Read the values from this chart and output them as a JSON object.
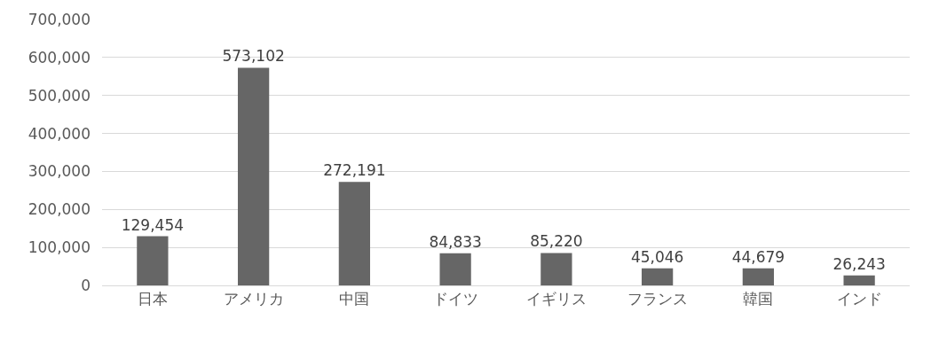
{
  "chart_data": {
    "type": "bar",
    "categories": [
      "日本",
      "アメリカ",
      "中国",
      "ドイツ",
      "イギリス",
      "フランス",
      "韓国",
      "インド"
    ],
    "values": [
      129454,
      573102,
      272191,
      84833,
      85220,
      45046,
      44679,
      26243
    ],
    "color": "#666666",
    "ylim": [
      0,
      700000
    ],
    "yticks": [
      {
        "value": 0,
        "label": "0"
      },
      {
        "value": 100000,
        "label": "100,000"
      },
      {
        "value": 200000,
        "label": "200,000"
      },
      {
        "value": 300000,
        "label": "300,000"
      },
      {
        "value": 400000,
        "label": "400,000"
      },
      {
        "value": 500000,
        "label": "500,000"
      },
      {
        "value": 600000,
        "label": "600,000"
      },
      {
        "value": 700000,
        "label": "700,000"
      }
    ],
    "grid": "y",
    "value_labels": [
      "129,454",
      "573,102",
      "272,191",
      "84,833",
      "85,220",
      "45,046",
      "44,679",
      "26,243"
    ]
  }
}
